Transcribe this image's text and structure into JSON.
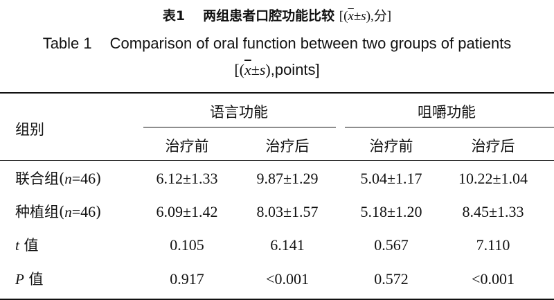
{
  "caption": {
    "cn_label": "表1",
    "cn_title": "两组患者口腔功能比较",
    "cn_unit": "[(x̄±s),分]",
    "en_label": "Table 1",
    "en_title": "Comparison of oral function between two groups of patients",
    "en_unit": "[(x̄±s),points]"
  },
  "table": {
    "group_header": "组别",
    "col_groups": [
      "语言功能",
      "咀嚼功能"
    ],
    "sub_headers": [
      "治疗前",
      "治疗后",
      "治疗前",
      "治疗后"
    ],
    "rows": [
      {
        "label": "联合组",
        "n_var": "n",
        "n_text": "=46",
        "cells": [
          "6.12±1.33",
          "9.87±1.29",
          "5.04±1.17",
          "10.22±1.04"
        ]
      },
      {
        "label": "种植组",
        "n_var": "n",
        "n_text": "=46",
        "cells": [
          "6.09±1.42",
          "8.03±1.57",
          "5.18±1.20",
          "8.45±1.33"
        ]
      },
      {
        "var": "t",
        "label": "值",
        "cells": [
          "0.105",
          "6.141",
          "0.567",
          "7.110"
        ]
      },
      {
        "var": "P",
        "label": "值",
        "cells": [
          "0.917",
          "<0.001",
          "0.572",
          "<0.001"
        ]
      }
    ]
  }
}
